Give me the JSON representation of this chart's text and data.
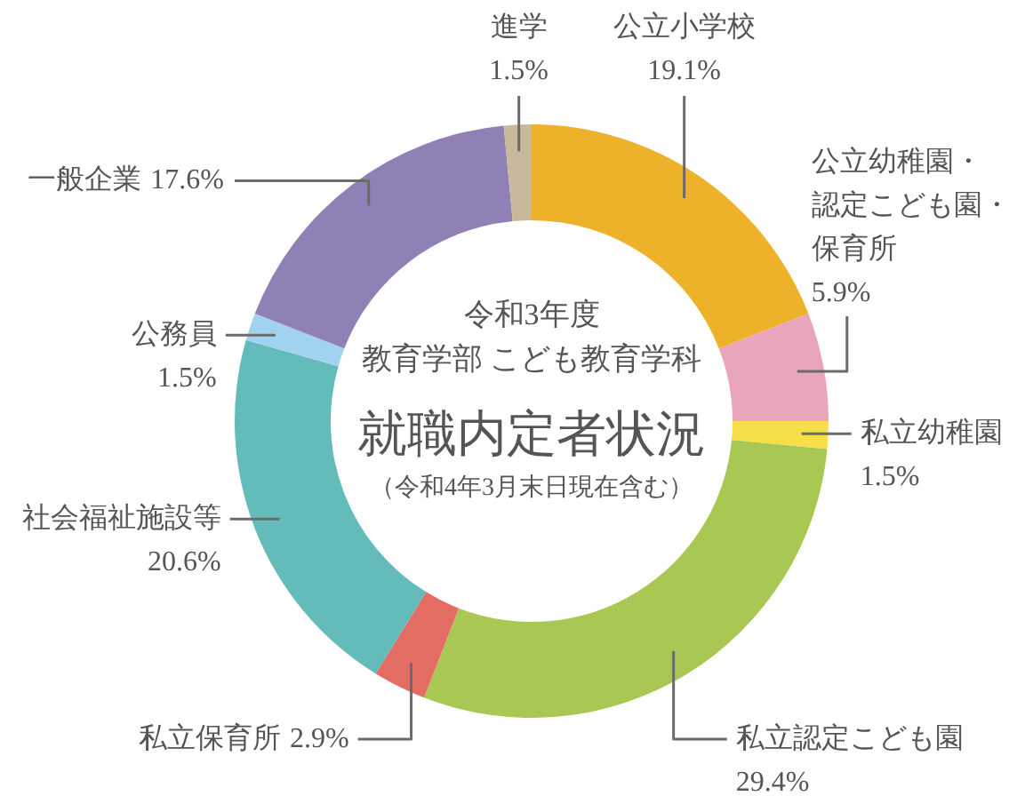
{
  "chart_data": {
    "type": "donut",
    "title": "就職内定者状況",
    "subtitle": "令和3年度",
    "annotations": [
      "教育学部 こども教育学科",
      "（令和4年3月末日現在含む）"
    ],
    "categories": [
      "公立小学校",
      "公立幼稚園・認定こども園・保育所",
      "私立幼稚園",
      "私立認定こども園",
      "私立保育所",
      "社会福祉施設等",
      "公務員",
      "一般企業",
      "進学"
    ],
    "values": [
      19.1,
      5.9,
      1.5,
      29.4,
      2.9,
      20.6,
      1.5,
      17.6,
      1.5
    ],
    "value_labels": [
      "19.1%",
      "5.9%",
      "1.5%",
      "29.4%",
      "2.9%",
      "20.6%",
      "1.5%",
      "17.6%",
      "1.5%"
    ],
    "colors": [
      "#eeb22a",
      "#e9a5ba",
      "#f6df48",
      "#a9c853",
      "#e46d63",
      "#64bcba",
      "#a1d3f0",
      "#8f81b6",
      "#c8b99a"
    ]
  }
}
